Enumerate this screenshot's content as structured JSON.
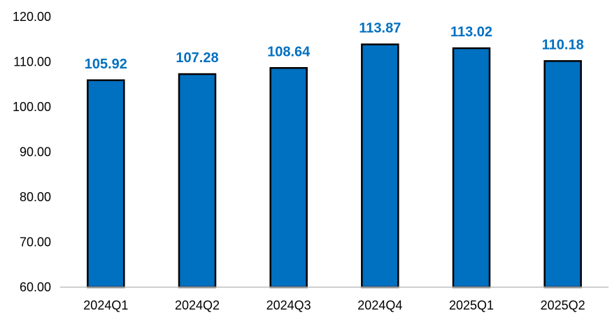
{
  "chart_data": {
    "type": "bar",
    "categories": [
      "2024Q1",
      "2024Q2",
      "2024Q3",
      "2024Q4",
      "2025Q1",
      "2025Q2"
    ],
    "values": [
      105.92,
      107.28,
      108.64,
      113.87,
      113.02,
      110.18
    ],
    "value_labels": [
      "105.92",
      "107.28",
      "108.64",
      "113.87",
      "113.02",
      "110.18"
    ],
    "title": "",
    "xlabel": "",
    "ylabel": "",
    "ylim": [
      60,
      120
    ],
    "y_ticks": [
      60,
      70,
      80,
      90,
      100,
      110,
      120
    ],
    "y_tick_labels": [
      "60.00",
      "70.00",
      "80.00",
      "90.00",
      "100.00",
      "110.00",
      "120.00"
    ],
    "grid": false,
    "legend": "none",
    "colors": {
      "bar_fill": "#0070C0",
      "bar_stroke": "#000000",
      "data_label": "#0070C0",
      "axis": "#bfbfbf"
    }
  }
}
